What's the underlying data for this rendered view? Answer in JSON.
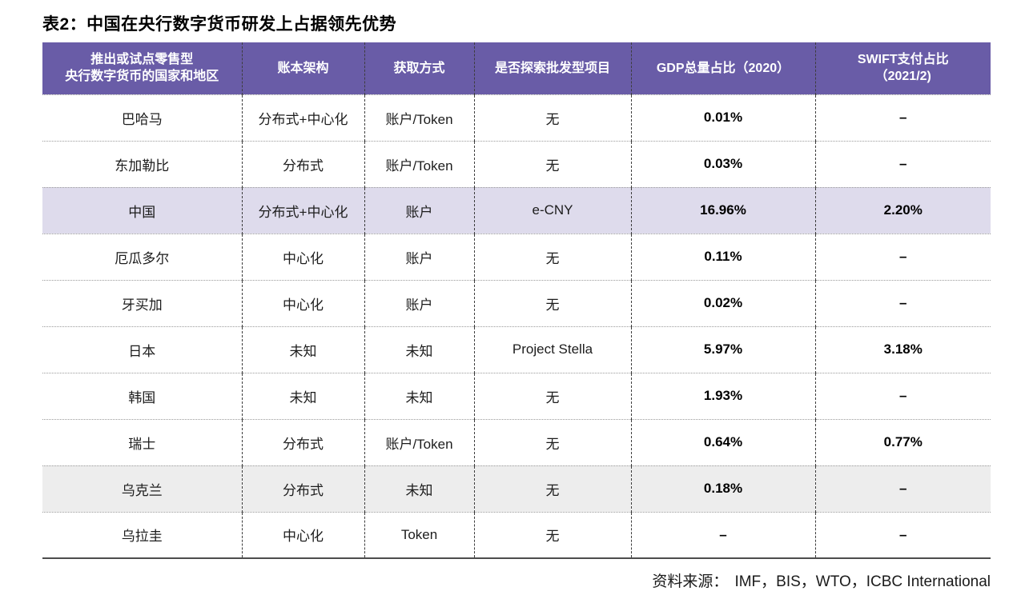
{
  "title": "表2：中国在央行数字货币研发上占据领先优势",
  "colors": {
    "header_bg": "#695CA7",
    "header_text": "#ffffff",
    "highlight_purple_row": "#DEDBEC",
    "highlight_gray_row": "#EDEDED",
    "table_bottom_border": "#4d4d4d"
  },
  "table": {
    "headers": {
      "country_line1": "推出或试点零售型",
      "country_line2": "央行数字货币的国家和地区",
      "ledger": "账本架构",
      "access": "获取方式",
      "wholesale": "是否探索批发型项目",
      "gdp": "GDP总量占比（2020）",
      "swift_line1": "SWIFT支付占比",
      "swift_line2": "（2021/2)"
    },
    "rows": [
      {
        "country": "巴哈马",
        "ledger": "分布式+中心化",
        "access": "账户/Token",
        "wholesale": "无",
        "gdp": "0.01%",
        "swift": "–"
      },
      {
        "country": "东加勒比",
        "ledger": "分布式",
        "access": "账户/Token",
        "wholesale": "无",
        "gdp": "0.03%",
        "swift": "–"
      },
      {
        "country": "中国",
        "ledger": "分布式+中心化",
        "access": "账户",
        "wholesale": "e-CNY",
        "gdp": "16.96%",
        "swift": "2.20%"
      },
      {
        "country": "厄瓜多尔",
        "ledger": "中心化",
        "access": "账户",
        "wholesale": "无",
        "gdp": "0.11%",
        "swift": "–"
      },
      {
        "country": "牙买加",
        "ledger": "中心化",
        "access": "账户",
        "wholesale": "无",
        "gdp": "0.02%",
        "swift": "–"
      },
      {
        "country": "日本",
        "ledger": "未知",
        "access": "未知",
        "wholesale": "Project Stella",
        "gdp": "5.97%",
        "swift": "3.18%"
      },
      {
        "country": "韩国",
        "ledger": "未知",
        "access": "未知",
        "wholesale": "无",
        "gdp": "1.93%",
        "swift": "–"
      },
      {
        "country": "瑞士",
        "ledger": "分布式",
        "access": "账户/Token",
        "wholesale": "无",
        "gdp": "0.64%",
        "swift": "0.77%"
      },
      {
        "country": "乌克兰",
        "ledger": "分布式",
        "access": "未知",
        "wholesale": "无",
        "gdp": "0.18%",
        "swift": "–"
      },
      {
        "country": "乌拉圭",
        "ledger": "中心化",
        "access": "Token",
        "wholesale": "无",
        "gdp": "–",
        "swift": "–"
      }
    ]
  },
  "footer": {
    "source_label": "资料来源：",
    "source_value": "IMF，BIS，WTO，ICBC International"
  }
}
